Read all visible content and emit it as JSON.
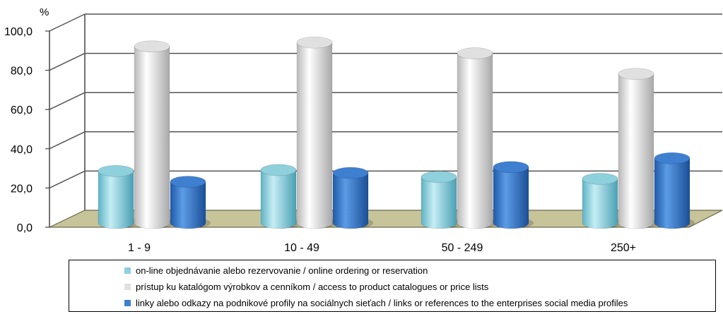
{
  "chart_data": {
    "type": "bar",
    "ylabel": "%",
    "ylim": [
      0,
      100
    ],
    "yticks": [
      "0,0",
      "20,0",
      "40,0",
      "60,0",
      "80,0",
      "100,0"
    ],
    "categories": [
      "1 - 9",
      "10 - 49",
      "50 - 249",
      "250+"
    ],
    "grid": true,
    "legend_position": "bottom",
    "series": [
      {
        "name": "on-line objednávanie alebo rezervovanie / online ordering or reservation",
        "color": "#8ed0dc",
        "values": [
          26.5,
          27.0,
          23.5,
          22.5
        ]
      },
      {
        "name": "prístup ku katalógom výrobkov a cenníkom / access to product catalogues or price lists",
        "color": "#e0e0e0",
        "values": [
          90.0,
          92.0,
          86.5,
          76.0
        ]
      },
      {
        "name": "linky alebo odkazy na podnikové profily na sociálnych sieťach / links or references to the enterprises social media profiles",
        "color": "#3f7fd0",
        "values": [
          21.0,
          25.5,
          28.5,
          33.0
        ]
      }
    ]
  }
}
